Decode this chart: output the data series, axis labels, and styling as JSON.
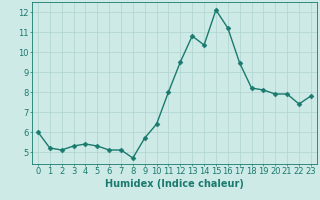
{
  "x": [
    0,
    1,
    2,
    3,
    4,
    5,
    6,
    7,
    8,
    9,
    10,
    11,
    12,
    13,
    14,
    15,
    16,
    17,
    18,
    19,
    20,
    21,
    22,
    23
  ],
  "y": [
    6.0,
    5.2,
    5.1,
    5.3,
    5.4,
    5.3,
    5.1,
    5.1,
    4.7,
    5.7,
    6.4,
    8.0,
    9.5,
    10.8,
    10.35,
    12.1,
    11.2,
    9.45,
    8.2,
    8.1,
    7.9,
    7.9,
    7.4,
    7.8
  ],
  "bg_color": "#ceeae7",
  "grid_color": "#aed4d0",
  "line_color": "#1a7a6e",
  "marker_color": "#1a7a6e",
  "xlabel": "Humidex (Indice chaleur)",
  "xlim": [
    -0.5,
    23.5
  ],
  "ylim": [
    4.4,
    12.5
  ],
  "yticks": [
    5,
    6,
    7,
    8,
    9,
    10,
    11,
    12
  ],
  "xticks": [
    0,
    1,
    2,
    3,
    4,
    5,
    6,
    7,
    8,
    9,
    10,
    11,
    12,
    13,
    14,
    15,
    16,
    17,
    18,
    19,
    20,
    21,
    22,
    23
  ],
  "xlabel_fontsize": 7,
  "tick_fontsize": 6,
  "line_width": 1.0,
  "marker_size": 2.5
}
